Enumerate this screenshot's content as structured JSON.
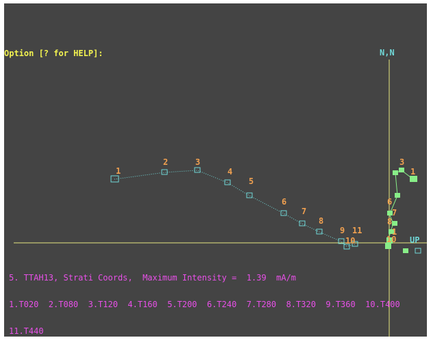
{
  "prompt": "Option [? for HELP]:",
  "axis_labels": {
    "north": "N,N",
    "up": "UP"
  },
  "plot": {
    "point_labels": [
      "1",
      "2",
      "3",
      "4",
      "5",
      "6",
      "7",
      "8",
      "9",
      "10",
      "11"
    ],
    "right_point_labels": [
      "1",
      "3",
      "6",
      "7",
      "8",
      "1",
      "10"
    ]
  },
  "info": {
    "line1": "5. TTAH13, Strati Coords,  Maximum Intensity =  1.39  mA/m",
    "line2": "1.T020  2.T080  3.T120  4.T160  5.T200  6.T240  7.T280  8.T320  9.T360  10.T400",
    "line3": "11.T440"
  },
  "colors": {
    "background": "#444444",
    "prompt": "#f2f250",
    "axis": "#e8e880",
    "left_plane": "#70d8d8",
    "right_plane": "#88ee88",
    "labels": "#f0a050",
    "info": "#e850e8"
  }
}
